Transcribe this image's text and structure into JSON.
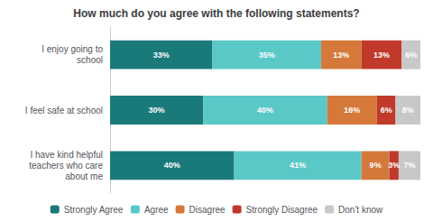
{
  "chart_data": {
    "type": "bar",
    "orientation": "horizontal",
    "stacked": true,
    "title": "How much do you agree with the following statements?",
    "categories": [
      "I enjoy going to\nschool",
      "I feel safe at school",
      "I have kind helpful\nteachers who care\nabout me"
    ],
    "series": [
      {
        "name": "Strongly Agree",
        "color": "#1a7a7a",
        "values": [
          33,
          30,
          40
        ],
        "value_labels": [
          "33%",
          "30%",
          "40%"
        ]
      },
      {
        "name": "Agree",
        "color": "#5bc8c8",
        "values": [
          35,
          40,
          41
        ],
        "value_labels": [
          "35%",
          "40%",
          "41%"
        ]
      },
      {
        "name": "Disagree",
        "color": "#d4793a",
        "values": [
          13,
          16,
          9
        ],
        "value_labels": [
          "13%",
          "16%",
          "9%"
        ]
      },
      {
        "name": "Strongly Disagree",
        "color": "#c0392b",
        "values": [
          13,
          6,
          3
        ],
        "value_labels": [
          "13%",
          "6%",
          "3%"
        ]
      },
      {
        "name": "Don't know",
        "color": "#c8c8c8",
        "values": [
          6,
          8,
          7
        ],
        "value_labels": [
          "6%",
          "8%",
          "7%"
        ]
      }
    ],
    "xlim": [
      0,
      100
    ],
    "data_labels": true,
    "tick_labels": "y",
    "grid": false,
    "legend": "bottom"
  }
}
